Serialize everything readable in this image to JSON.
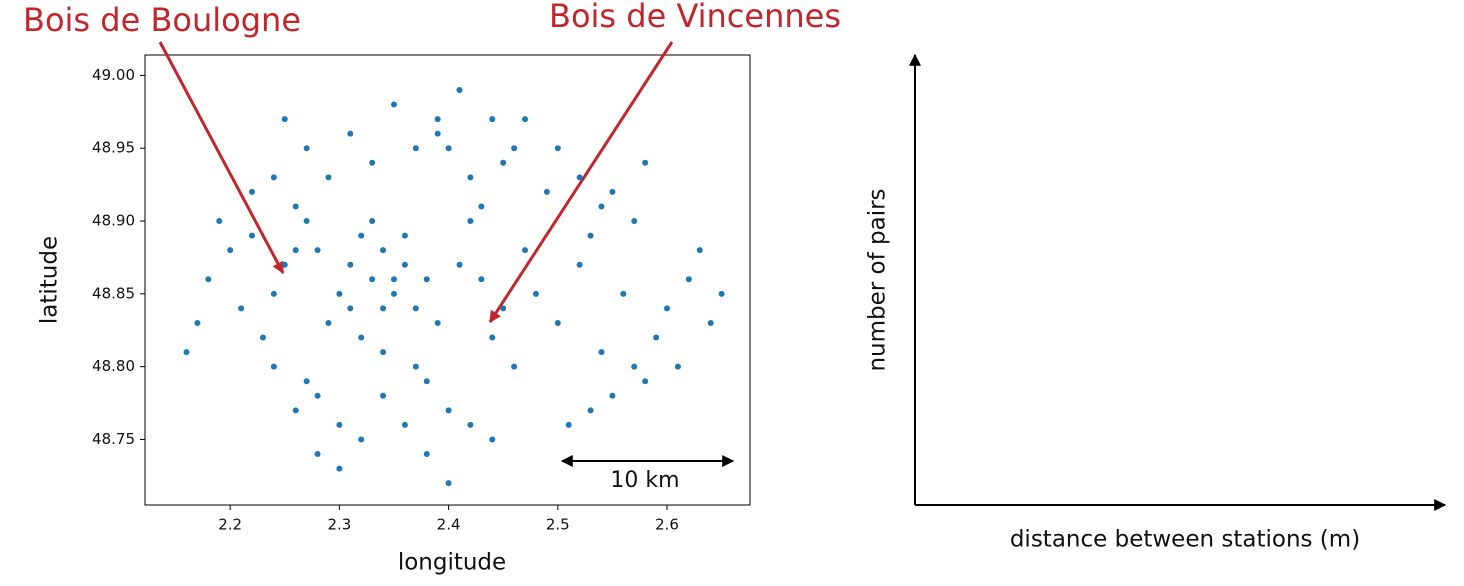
{
  "chart_data": [
    {
      "type": "scatter",
      "xlabel": "longitude",
      "ylabel": "latitude",
      "color": "#1f77b4",
      "xlim": [
        2.122,
        2.676
      ],
      "ylim": [
        48.705,
        49.014
      ],
      "xticks": [
        2.2,
        2.3,
        2.4,
        2.5,
        2.6
      ],
      "yticks": [
        48.75,
        {
          "value": 48.8,
          "label": "48.80"
        },
        48.85,
        {
          "value": 48.9,
          "label": "48.90"
        },
        48.95,
        {
          "value": 49,
          "label": "49.00"
        }
      ],
      "annotations": [
        "Bois de Boulogne",
        "Bois de Vincennes",
        "10 km"
      ],
      "x": [
        2.33,
        2.35,
        2.31,
        2.37,
        2.34,
        2.29,
        2.36,
        2.32,
        2.38,
        2.3,
        2.34,
        2.33,
        2.36,
        2.31,
        2.39,
        2.28,
        2.35,
        2.37,
        2.32,
        2.34,
        2.26,
        2.27,
        2.25,
        2.24,
        2.22,
        2.2,
        2.18,
        2.21,
        2.23,
        2.19,
        2.17,
        2.16,
        2.22,
        2.24,
        2.26,
        2.41,
        2.43,
        2.45,
        2.47,
        2.42,
        2.44,
        2.46,
        2.48,
        2.5,
        2.52,
        2.54,
        2.56,
        2.58,
        2.6,
        2.62,
        2.64,
        2.65,
        2.63,
        2.61,
        2.59,
        2.57,
        2.55,
        2.53,
        2.51,
        2.49,
        2.4,
        2.42,
        2.44,
        2.41,
        2.43,
        2.39,
        2.45,
        2.4,
        2.42,
        2.38,
        2.25,
        2.27,
        2.29,
        2.31,
        2.33,
        2.35,
        2.37,
        2.39,
        2.28,
        2.3,
        2.24,
        2.26,
        2.28,
        2.3,
        2.32,
        2.34,
        2.36,
        2.38,
        2.4,
        2.27,
        2.5,
        2.52,
        2.55,
        2.58,
        2.54,
        2.47,
        2.46,
        2.44,
        2.57,
        2.53
      ],
      "y": [
        48.86,
        48.85,
        48.87,
        48.84,
        48.88,
        48.83,
        48.89,
        48.82,
        48.86,
        48.85,
        48.81,
        48.9,
        48.87,
        48.84,
        48.83,
        48.88,
        48.86,
        48.8,
        48.89,
        48.84,
        48.88,
        48.9,
        48.87,
        48.85,
        48.89,
        48.88,
        48.86,
        48.84,
        48.82,
        48.9,
        48.83,
        48.81,
        48.92,
        48.93,
        48.91,
        48.87,
        48.86,
        48.84,
        48.88,
        48.9,
        48.82,
        48.8,
        48.85,
        48.83,
        48.87,
        48.81,
        48.85,
        48.79,
        48.84,
        48.86,
        48.83,
        48.85,
        48.88,
        48.8,
        48.82,
        48.9,
        48.78,
        48.89,
        48.76,
        48.92,
        48.95,
        48.93,
        48.97,
        48.99,
        48.91,
        48.96,
        48.94,
        48.77,
        48.76,
        48.79,
        48.97,
        48.95,
        48.93,
        48.96,
        48.94,
        48.98,
        48.95,
        48.97,
        48.78,
        48.76,
        48.8,
        48.77,
        48.74,
        48.73,
        48.75,
        48.78,
        48.76,
        48.74,
        48.72,
        48.79,
        48.95,
        48.93,
        48.92,
        48.94,
        48.91,
        48.97,
        48.95,
        48.75,
        48.8,
        48.77
      ]
    },
    {
      "type": "axes",
      "xlabel": "distance between stations (m)",
      "ylabel": "number of pairs"
    }
  ]
}
